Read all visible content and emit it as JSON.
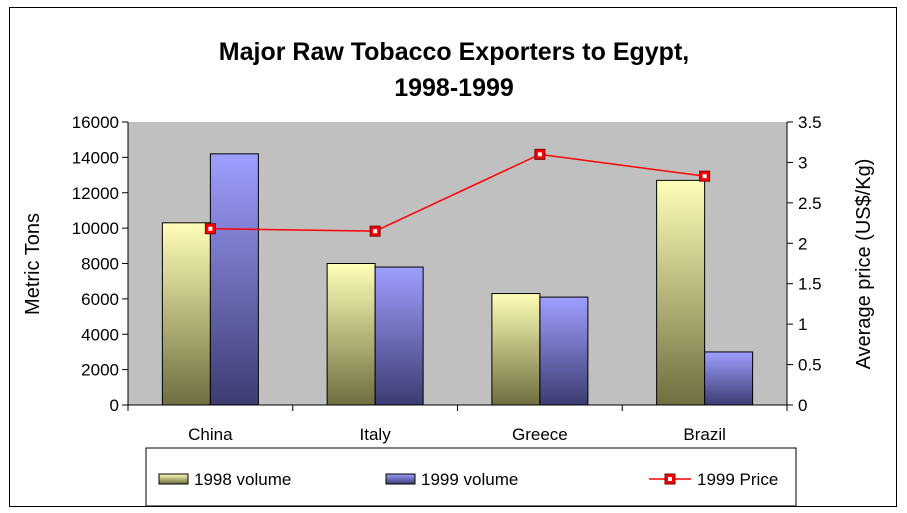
{
  "chart_data": {
    "type": "bar",
    "title_line1": "Major Raw Tobacco Exporters to Egypt,",
    "title_line2": "1998-1999",
    "categories": [
      "China",
      "Italy",
      "Greece",
      "Brazil"
    ],
    "series": [
      {
        "name": "1998 volume",
        "type": "bar",
        "axis": "left",
        "values": [
          10300,
          8000,
          6300,
          12700
        ],
        "color_top": "#ffffb8",
        "color_bottom": "#6e6e40"
      },
      {
        "name": "1999 volume",
        "type": "bar",
        "axis": "left",
        "values": [
          14200,
          7800,
          6100,
          3000
        ],
        "color_top": "#9e9eff",
        "color_bottom": "#3c3c72"
      },
      {
        "name": "1999 Price",
        "type": "line",
        "axis": "right",
        "values": [
          2.18,
          2.15,
          3.1,
          2.83
        ],
        "color": "#ff0000"
      }
    ],
    "ylabel": "Metric Tons",
    "y2label": "Average price (US$/Kg)",
    "ylim": [
      0,
      16000
    ],
    "y2lim": [
      0,
      3.5
    ],
    "yticks": [
      "0",
      "2000",
      "4000",
      "6000",
      "8000",
      "10000",
      "12000",
      "14000",
      "16000"
    ],
    "y2ticks": [
      "0",
      "0.5",
      "1",
      "1.5",
      "2",
      "2.5",
      "3",
      "3.5"
    ],
    "plot_background": "#c0c0c0",
    "grid": false,
    "legend_position": "bottom"
  }
}
